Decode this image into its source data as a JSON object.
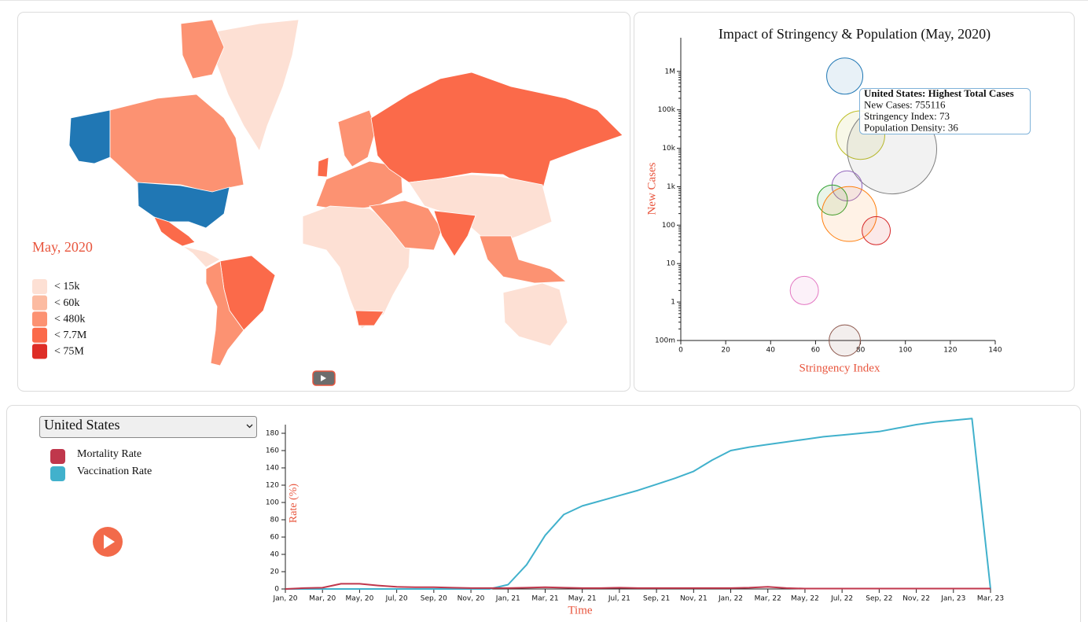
{
  "map": {
    "title": "May, 2020",
    "legend": [
      {
        "label": "< 15k",
        "color": "#fde0d4"
      },
      {
        "label": "< 60k",
        "color": "#fcbba1"
      },
      {
        "label": "< 480k",
        "color": "#fc9272"
      },
      {
        "label": "< 7.7M",
        "color": "#fb6a4a"
      },
      {
        "label": "< 75M",
        "color": "#de2d26"
      }
    ]
  },
  "controls": {
    "country": "United States"
  },
  "chart_data": [
    {
      "type": "scatter",
      "title": "Impact of Stringency & Population (May, 2020)",
      "xlabel": "Stringency Index",
      "ylabel": "New Cases",
      "x": [
        73,
        80,
        94,
        74,
        67.5,
        75,
        87,
        55,
        73
      ],
      "values": [
        755116,
        22000,
        9500,
        1050,
        450,
        195,
        72,
        2,
        0.1
      ],
      "sizes": [
        36,
        65,
        221,
        25,
        25,
        83,
        22,
        22,
        27
      ],
      "colors": [
        "#1f77b4",
        "#bcbd22",
        "#7f7f7f",
        "#9467bd",
        "#2ca02c",
        "#ff7f0e",
        "#d62728",
        "#e377c2",
        "#8c564b"
      ],
      "xlim": [
        0,
        140
      ],
      "ylim": [
        0.1,
        7500000
      ],
      "log_y": true,
      "xticks": [
        0,
        20,
        40,
        60,
        80,
        100,
        120,
        140
      ],
      "yticks": [
        {
          "value": 0.1,
          "label": "100m"
        },
        1,
        10,
        100,
        {
          "value": 1000,
          "label": "1k"
        },
        {
          "value": 10000,
          "label": "10k"
        },
        {
          "value": 100000,
          "label": "100k"
        },
        {
          "value": 1000000,
          "label": "1M"
        }
      ],
      "tooltip": {
        "title": "United States: Highest Total Cases",
        "lines": [
          "New Cases: 755116",
          "Stringency Index: 73",
          "Population Density: 36"
        ]
      }
    },
    {
      "type": "line",
      "xlabel": "Time",
      "ylabel": "Rate (%)",
      "x": [
        "2020-01",
        "2020-02",
        "2020-03",
        "2020-04",
        "2020-05",
        "2020-06",
        "2020-07",
        "2020-08",
        "2020-09",
        "2020-10",
        "2020-11",
        "2020-12",
        "2021-01",
        "2021-02",
        "2021-03",
        "2021-04",
        "2021-05",
        "2021-06",
        "2021-07",
        "2021-08",
        "2021-09",
        "2021-10",
        "2021-11",
        "2021-12",
        "2022-01",
        "2022-02",
        "2022-03",
        "2022-04",
        "2022-05",
        "2022-06",
        "2022-07",
        "2022-08",
        "2022-09",
        "2022-10",
        "2022-11",
        "2022-12",
        "2023-01",
        "2023-02",
        "2023-03"
      ],
      "series": [
        {
          "name": "Mortality Rate",
          "color": "#c0374c",
          "values": [
            0,
            1,
            1.5,
            6,
            6,
            4,
            2.5,
            2,
            2,
            1.5,
            1,
            1,
            1,
            1.5,
            2,
            1.5,
            1,
            1,
            1.5,
            1,
            1,
            1,
            1,
            1,
            1,
            1.5,
            2.5,
            1,
            0.5,
            0.5,
            0.5,
            0.5,
            0.5,
            0.5,
            0.5,
            0.5,
            0.5,
            0.5,
            0.5
          ]
        },
        {
          "name": "Vaccination Rate",
          "color": "#41b1cc",
          "values": [
            0,
            0,
            0,
            0,
            0,
            0,
            0,
            0,
            0,
            0,
            0,
            0,
            5,
            28,
            62,
            86,
            96,
            102,
            108,
            114,
            121,
            128,
            136,
            149,
            160,
            164,
            167,
            170,
            173,
            176,
            178,
            180,
            182,
            186,
            190,
            193,
            195,
            197,
            0
          ]
        }
      ],
      "xlim": [
        "2020-01",
        "2023-03"
      ],
      "ylim": [
        0,
        190
      ],
      "xticks": [
        {
          "value": "2020-01",
          "label": "Jan, 20"
        },
        {
          "value": "2020-03",
          "label": "Mar, 20"
        },
        {
          "value": "2020-05",
          "label": "May, 20"
        },
        {
          "value": "2020-07",
          "label": "Jul, 20"
        },
        {
          "value": "2020-09",
          "label": "Sep, 20"
        },
        {
          "value": "2020-11",
          "label": "Nov, 20"
        },
        {
          "value": "2021-01",
          "label": "Jan, 21"
        },
        {
          "value": "2021-03",
          "label": "Mar, 21"
        },
        {
          "value": "2021-05",
          "label": "May, 21"
        },
        {
          "value": "2021-07",
          "label": "Jul, 21"
        },
        {
          "value": "2021-09",
          "label": "Sep, 21"
        },
        {
          "value": "2021-11",
          "label": "Nov, 21"
        },
        {
          "value": "2022-01",
          "label": "Jan, 22"
        },
        {
          "value": "2022-03",
          "label": "Mar, 22"
        },
        {
          "value": "2022-05",
          "label": "May, 22"
        },
        {
          "value": "2022-07",
          "label": "Jul, 22"
        },
        {
          "value": "2022-09",
          "label": "Sep, 22"
        },
        {
          "value": "2022-11",
          "label": "Nov, 22"
        },
        {
          "value": "2023-01",
          "label": "Jan, 23"
        },
        {
          "value": "2023-03",
          "label": "Mar, 23"
        }
      ],
      "yticks": [
        0,
        20,
        40,
        60,
        80,
        100,
        120,
        140,
        160,
        180
      ]
    }
  ]
}
